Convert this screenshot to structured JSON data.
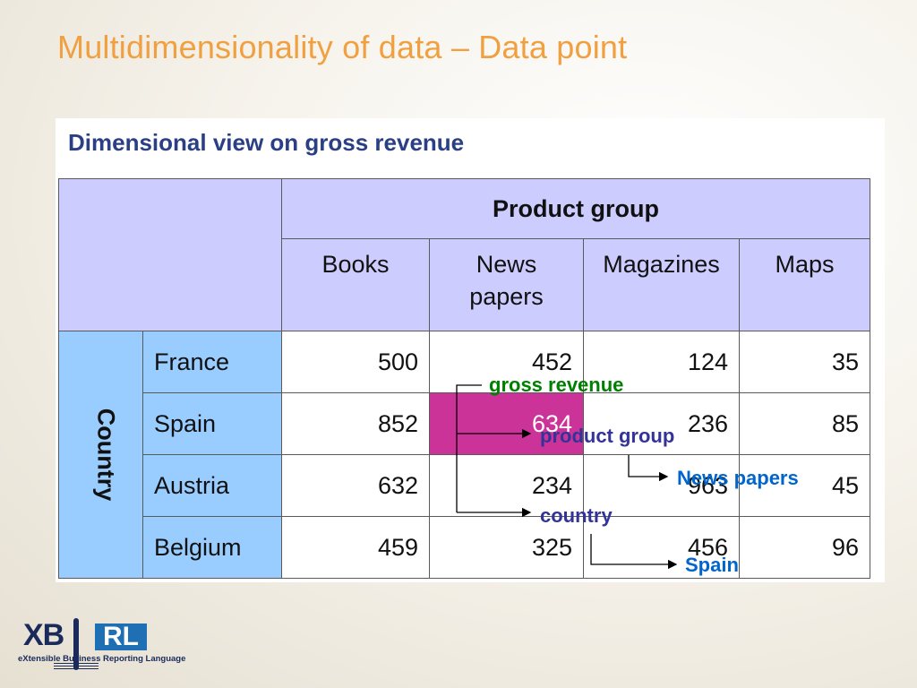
{
  "slide": {
    "title": "Multidimensionality of data – Data point"
  },
  "subtitle": "Dimensional view on gross revenue",
  "table": {
    "group_header": "Product group",
    "columns": [
      "Books",
      "News papers",
      "Magazines",
      "Maps"
    ],
    "row_dimension": "Country",
    "rows": [
      {
        "label": "France",
        "values": [
          "500",
          "452",
          "124",
          "35"
        ]
      },
      {
        "label": "Spain",
        "values": [
          "852",
          "634",
          "236",
          "85"
        ]
      },
      {
        "label": "Austria",
        "values": [
          "632",
          "234",
          "963",
          "45"
        ]
      },
      {
        "label": "Belgium",
        "values": [
          "459",
          "325",
          "456",
          "96"
        ]
      }
    ],
    "highlight_color": "#cc3399",
    "header_color": "#ccccff",
    "row_header_color": "#99ccff"
  },
  "annotations": {
    "gross_revenue": "gross revenue",
    "product_group": "product group",
    "news_papers": "News papers",
    "country": "country",
    "spain": "Spain"
  },
  "logo": {
    "name": "XBRL",
    "tagline": "eXtensible Business Reporting Language"
  }
}
